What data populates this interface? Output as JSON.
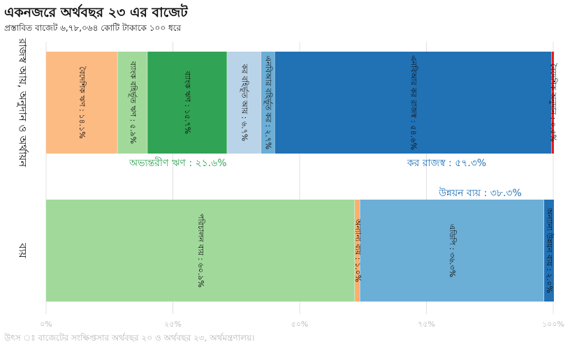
{
  "title": "একনজরে অর্থবছর ২৩ এর বাজেট",
  "subtitle": "প্রস্তাবিত বাজেট ৬,৭৮,০৬৪ কোটি টাকাকে ১০০ ধরে",
  "source": "উৎস ঃ বাজেটের সংক্ষিপ্তসার অর্থবছর ২০ ও অর্থবছর ২৩, অর্থমন্ত্রণালয়।",
  "colors": {
    "peach": "#fdbb84",
    "light_green": "#a1d99b",
    "green": "#31a354",
    "light_blue": "#b9d3e8",
    "steel_blue": "#6baed6",
    "blue": "#2171b5",
    "red": "#e31a1c",
    "orange": "#fdae6b",
    "grid": "#e0e0e0",
    "axis_text": "#bbbbbb",
    "green_text": "#31a354",
    "blue_text": "#2171b5"
  },
  "chart_data": {
    "type": "bar",
    "orientation": "horizontal-stacked",
    "categories": [
      "রাজস্ব আয়, অনুদান ও অর্থায়ন",
      "ব্যয়"
    ],
    "xlim": [
      0,
      100
    ],
    "x_ticks": [
      {
        "value": 0,
        "label": "০%"
      },
      {
        "value": 25,
        "label": "২৫%"
      },
      {
        "value": 50,
        "label": "৫০%"
      },
      {
        "value": 75,
        "label": "৭৫%"
      },
      {
        "value": 100,
        "label": "১০০%"
      }
    ],
    "grid": true,
    "series": [
      {
        "category": "রাজস্ব আয়, অনুদান ও অর্থায়ন",
        "color": "peach",
        "value": 14.1,
        "label": "বৈদেশিক ঋণ : ১৪.১%"
      },
      {
        "category": "রাজস্ব আয়, অনুদান ও অর্থায়ন",
        "color": "light_green",
        "value": 5.9,
        "label": "ব্যাংক বহির্ভূত ঋণ : ৫.৯%"
      },
      {
        "category": "রাজস্ব আয়, অনুদান ও অর্থায়ন",
        "color": "green",
        "value": 15.7,
        "label": "ব্যাংক ঋণ : ১৫.৭%"
      },
      {
        "category": "রাজস্ব আয়, অনুদান ও অর্থায়ন",
        "color": "light_blue",
        "value": 6.7,
        "label": "কর বহির্ভূত আয় : ৬.৭%"
      },
      {
        "category": "রাজস্ব আয়, অনুদান ও অর্থায়ন",
        "color": "steel_blue",
        "value": 2.7,
        "label": "এনবিআর বহির্ভূত কর : ২.৭%"
      },
      {
        "category": "রাজস্ব আয়, অনুদান ও অর্থায়ন",
        "color": "blue",
        "value": 54.6,
        "label": "এনবিআর কর রাজস্ব : ৫৪.৬%"
      },
      {
        "category": "রাজস্ব আয়, অনুদান ও অর্থায়ন",
        "color": "red",
        "value": 0.5,
        "label": "বৈদেশিক অনুদান : ০.৫%"
      },
      {
        "category": "ব্যয়",
        "color": "light_green",
        "value": 60.9,
        "label": "পরিচালন ব্যয় : ৬০.৯%"
      },
      {
        "category": "ব্যয়",
        "color": "orange",
        "value": 1.0,
        "label": "অন্যান্য ব্যয় : ১.০%"
      },
      {
        "category": "ব্যয়",
        "color": "steel_blue",
        "value": 36.3,
        "label": "এডিপি : ৩৬.৩%"
      },
      {
        "category": "ব্যয়",
        "color": "blue",
        "value": 2.0,
        "label": "অন্যান্য উন্নয়ন ব্যয় : ২.০%"
      }
    ],
    "annotations": [
      {
        "text": "অভ্যন্তরীণ ঋণ : ২১.৬%",
        "color": "green_text"
      },
      {
        "text": "কর রাজস্ব : ৫৭.৩%",
        "color": "blue_text"
      },
      {
        "text": "উন্নয়ন ব্যয় : ৩৮.৩%",
        "color": "blue_text"
      }
    ]
  }
}
